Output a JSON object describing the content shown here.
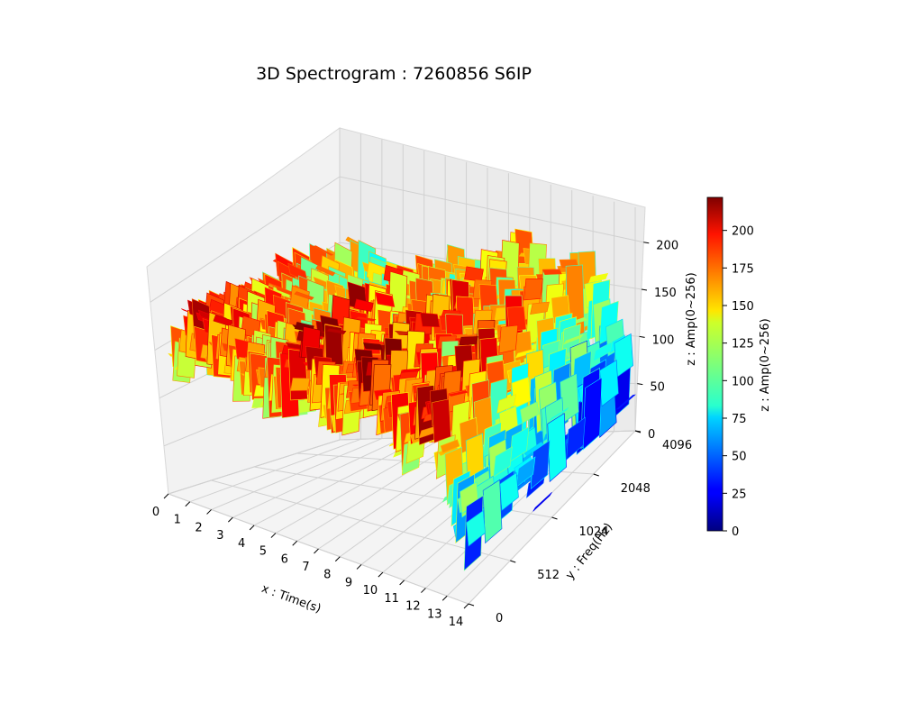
{
  "chart_data": {
    "type": "surface3d",
    "title": "3D Spectrogram : 7260856 S6IP",
    "xlabel": "x : Time(s)",
    "ylabel": "y : Freq(Hz)",
    "zlabel": "z : Amp(0~256)",
    "x_ticks": [
      "0",
      "1",
      "2",
      "3",
      "4",
      "5",
      "6",
      "7",
      "8",
      "9",
      "10",
      "11",
      "12",
      "13",
      "14"
    ],
    "y_ticks": [
      "0",
      "512",
      "1024",
      "2048",
      "4096"
    ],
    "z_ticks": [
      "0",
      "50",
      "100",
      "150",
      "200"
    ],
    "xlim": [
      0,
      14
    ],
    "zlim": [
      0,
      240
    ],
    "colormap": "jet",
    "colorbar": {
      "label": "z : Amp(0~256)",
      "ticks": [
        "0",
        "25",
        "50",
        "75",
        "100",
        "125",
        "150",
        "175",
        "200"
      ],
      "range": [
        0,
        222
      ]
    },
    "amplitude_by_time": [
      {
        "time": 0,
        "mean_amp": 150
      },
      {
        "time": 1,
        "mean_amp": 185
      },
      {
        "time": 2,
        "mean_amp": 175
      },
      {
        "time": 3,
        "mean_amp": 160
      },
      {
        "time": 4,
        "mean_amp": 150
      },
      {
        "time": 5,
        "mean_amp": 150
      },
      {
        "time": 6,
        "mean_amp": 200
      },
      {
        "time": 7,
        "mean_amp": 170
      },
      {
        "time": 8,
        "mean_amp": 160
      },
      {
        "time": 9,
        "mean_amp": 205
      },
      {
        "time": 10,
        "mean_amp": 175
      },
      {
        "time": 11,
        "mean_amp": 150
      },
      {
        "time": 12,
        "mean_amp": 200
      },
      {
        "time": 13,
        "mean_amp": 120
      },
      {
        "time": 14,
        "mean_amp": 60
      }
    ],
    "grid": true
  }
}
